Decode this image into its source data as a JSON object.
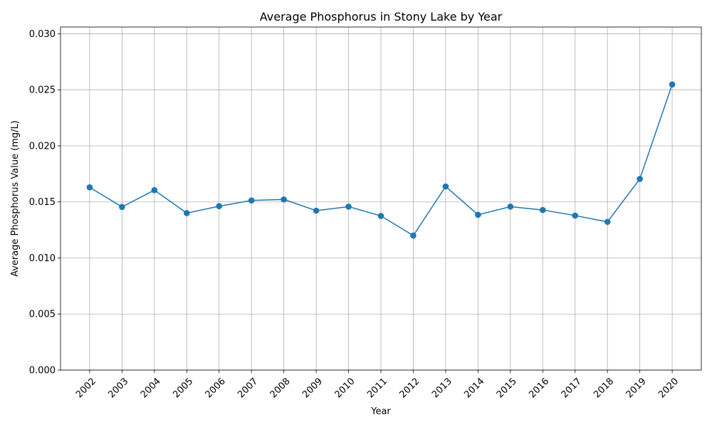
{
  "chart_data": {
    "type": "line",
    "title": "Average Phosphorus in Stony Lake by Year",
    "xlabel": "Year",
    "ylabel": "Average Phosphorus Value (mg/L)",
    "categories": [
      "2002",
      "2003",
      "2004",
      "2005",
      "2006",
      "2007",
      "2008",
      "2009",
      "2010",
      "2011",
      "2012",
      "2013",
      "2014",
      "2015",
      "2016",
      "2017",
      "2018",
      "2019",
      "2020"
    ],
    "series": [
      {
        "values": [
          0.0163,
          0.01455,
          0.01605,
          0.014,
          0.01462,
          0.01513,
          0.01522,
          0.01422,
          0.01458,
          0.01375,
          0.012,
          0.01638,
          0.01385,
          0.01458,
          0.01428,
          0.01378,
          0.01322,
          0.01705,
          0.02548
        ],
        "color": "#1f77b4",
        "marker": "circle"
      }
    ],
    "ylim": [
      0,
      0.0306
    ],
    "yticks": [
      "0.000",
      "0.005",
      "0.010",
      "0.015",
      "0.020",
      "0.025",
      "0.030"
    ],
    "ytick_values": [
      0,
      0.005,
      0.01,
      0.015,
      0.02,
      0.025,
      0.03
    ],
    "grid": true,
    "xtick_rotation": 45
  }
}
